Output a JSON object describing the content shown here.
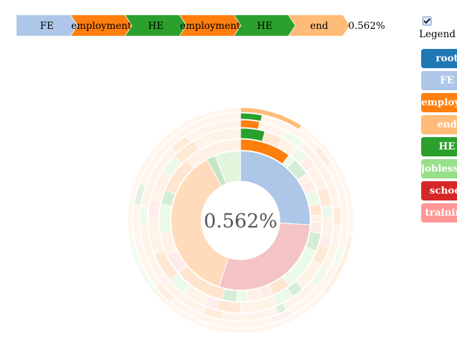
{
  "breadcrumb": {
    "steps": [
      {
        "label": "FE",
        "color": "#aec7e8"
      },
      {
        "label": "employment",
        "color": "#ff7f0e"
      },
      {
        "label": "HE",
        "color": "#2ca02c"
      },
      {
        "label": "employment",
        "color": "#ff7f0e"
      },
      {
        "label": "HE",
        "color": "#2ca02c"
      },
      {
        "label": "end",
        "color": "#ffbb78"
      }
    ],
    "percentage": "0.562%"
  },
  "legend_toggle": {
    "label": "Legend",
    "checked": true
  },
  "legend": {
    "items": [
      {
        "label": "root",
        "color": "#1f77b4"
      },
      {
        "label": "FE",
        "color": "#aec7e8"
      },
      {
        "label": "employment",
        "color": "#ff7f0e"
      },
      {
        "label": "end",
        "color": "#ffbb78"
      },
      {
        "label": "HE",
        "color": "#2ca02c"
      },
      {
        "label": "joblessness",
        "color": "#98df8a"
      },
      {
        "label": "school",
        "color": "#d62728"
      },
      {
        "label": "training",
        "color": "#ff9896"
      }
    ]
  },
  "chart_data": {
    "type": "sunburst",
    "center_label": "0.562%",
    "highlighted_path": [
      "FE",
      "employment",
      "HE",
      "employment",
      "HE",
      "end"
    ],
    "rings": [
      [
        {
          "category": "FE",
          "value": 26,
          "highlight": true
        },
        {
          "category": "school",
          "value": 29
        },
        {
          "category": "employment",
          "value": 37
        },
        {
          "category": "HE",
          "value": 2
        },
        {
          "category": "joblessness",
          "value": 6
        }
      ],
      [
        {
          "category": "employment",
          "value": 14,
          "highlight": true
        },
        {
          "category": "joblessness",
          "value": 2
        },
        {
          "category": "HE",
          "value": 5
        },
        {
          "category": "end",
          "value": 2
        },
        {
          "category": "training",
          "value": 3
        },
        {
          "category": "joblessness",
          "value": 4
        },
        {
          "category": "employment",
          "value": 3
        },
        {
          "category": "end",
          "value": 2
        },
        {
          "category": "training",
          "value": 3
        },
        {
          "category": "HE",
          "value": 5
        },
        {
          "category": "joblessness",
          "value": 12
        },
        {
          "category": "employment",
          "value": 5
        },
        {
          "category": "training",
          "value": 3
        },
        {
          "category": "end",
          "value": 4
        },
        {
          "category": "joblessness",
          "value": 3
        },
        {
          "category": "HE",
          "value": 4
        },
        {
          "category": "employment",
          "value": 14
        },
        {
          "category": "training",
          "value": 6
        },
        {
          "category": "end",
          "value": 6
        },
        {
          "category": "joblessness",
          "value": 8
        },
        {
          "category": "HE",
          "value": 4
        },
        {
          "category": "employment",
          "value": 10
        },
        {
          "category": "end",
          "value": 16
        }
      ],
      [
        {
          "category": "HE",
          "value": 4,
          "highlight": true
        },
        {
          "category": "employment",
          "value": 3
        },
        {
          "category": "end",
          "value": 3
        },
        {
          "category": "joblessness",
          "value": 2
        },
        {
          "category": "training",
          "value": 2
        },
        {
          "category": "end",
          "value": 4
        },
        {
          "category": "employment",
          "value": 3
        },
        {
          "category": "joblessness",
          "value": 2
        },
        {
          "category": "end",
          "value": 3
        },
        {
          "category": "training",
          "value": 2
        },
        {
          "category": "employment",
          "value": 3
        },
        {
          "category": "end",
          "value": 5
        },
        {
          "category": "HE",
          "value": 2
        },
        {
          "category": "joblessness",
          "value": 3
        },
        {
          "category": "end",
          "value": 6
        },
        {
          "category": "employment",
          "value": 4
        },
        {
          "category": "training",
          "value": 2
        },
        {
          "category": "end",
          "value": 4
        },
        {
          "category": "joblessness",
          "value": 3
        },
        {
          "category": "employment",
          "value": 5
        },
        {
          "category": "end",
          "value": 6
        },
        {
          "category": "training",
          "value": 3
        },
        {
          "category": "end",
          "value": 5
        },
        {
          "category": "joblessness",
          "value": 3
        },
        {
          "category": "employment",
          "value": 4
        },
        {
          "category": "end",
          "value": 8
        }
      ],
      [
        {
          "category": "employment",
          "value": 2,
          "highlight": true
        },
        {
          "category": "end",
          "value": 3
        },
        {
          "category": "joblessness",
          "value": 2
        },
        {
          "category": "end",
          "value": 4
        },
        {
          "category": "training",
          "value": 1
        },
        {
          "category": "end",
          "value": 3
        },
        {
          "category": "employment",
          "value": 2
        },
        {
          "category": "end",
          "value": 5
        },
        {
          "category": "joblessness",
          "value": 2
        },
        {
          "category": "end",
          "value": 4
        },
        {
          "category": "HE",
          "value": 1
        },
        {
          "category": "end",
          "value": 6
        },
        {
          "category": "employment",
          "value": 2
        },
        {
          "category": "end",
          "value": 5
        },
        {
          "category": "training",
          "value": 1
        },
        {
          "category": "end",
          "value": 6
        },
        {
          "category": "joblessness",
          "value": 2
        },
        {
          "category": "end",
          "value": 7
        },
        {
          "category": "employment",
          "value": 2
        },
        {
          "category": "end",
          "value": 6
        }
      ],
      [
        {
          "category": "HE",
          "value": 1,
          "highlight": true
        },
        {
          "category": "end",
          "value": 3
        },
        {
          "category": "employment",
          "value": 1
        },
        {
          "category": "end",
          "value": 4
        },
        {
          "category": "joblessness",
          "value": 1
        },
        {
          "category": "end",
          "value": 3
        },
        {
          "category": "training",
          "value": 1
        },
        {
          "category": "end",
          "value": 5
        },
        {
          "category": "employment",
          "value": 1
        },
        {
          "category": "end",
          "value": 4
        },
        {
          "category": "HE",
          "value": 1
        },
        {
          "category": "end",
          "value": 6
        }
      ],
      [
        {
          "category": "end",
          "value": 1,
          "highlight": true
        },
        {
          "category": "end",
          "value": 2
        },
        {
          "category": "employment",
          "value": 1
        },
        {
          "category": "end",
          "value": 3
        },
        {
          "category": "joblessness",
          "value": 1
        },
        {
          "category": "end",
          "value": 3
        }
      ]
    ],
    "highlight_start_angle_deg": 0,
    "legend_position": "right"
  }
}
